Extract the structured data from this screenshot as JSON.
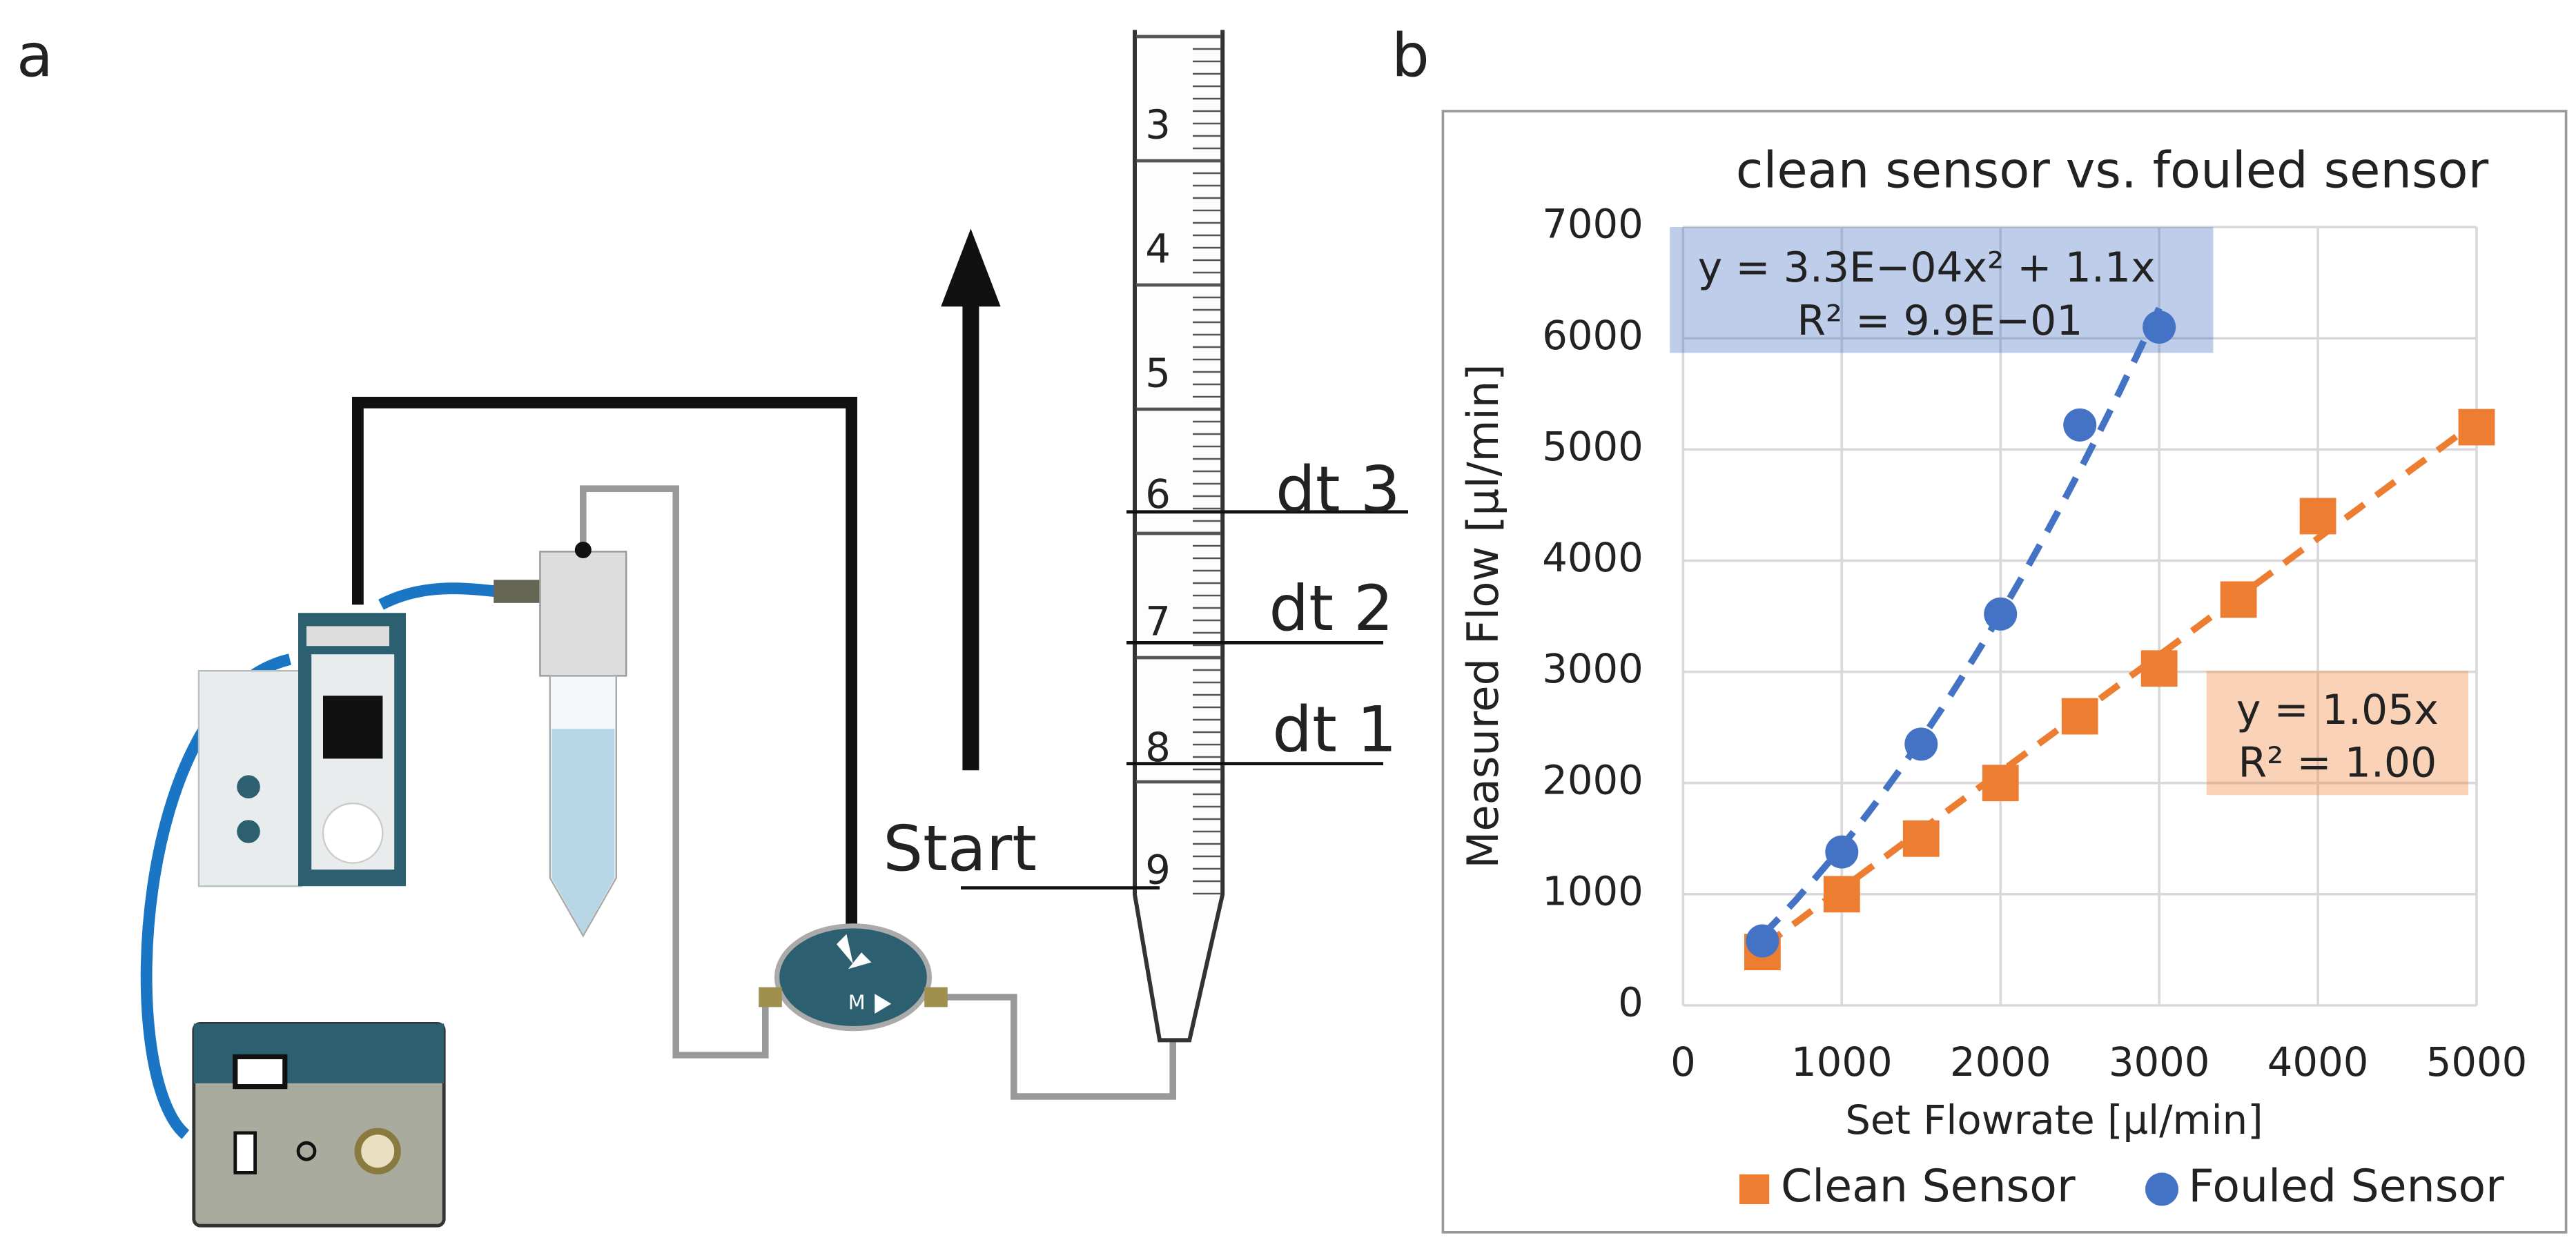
{
  "panel_labels": [
    "a",
    "b"
  ],
  "diagram": {
    "pipette_numbers": [
      "3",
      "4",
      "5",
      "6",
      "7",
      "8",
      "9"
    ],
    "markers": [
      "dt 3",
      "dt 2",
      "dt 1",
      "Start"
    ],
    "sensor_label": "M"
  },
  "chart_data": {
    "type": "scatter",
    "title": "clean sensor vs. fouled sensor",
    "xlabel": "Set Flowrate [µl/min]",
    "ylabel": "Measured Flow [µl/min]",
    "xlim": [
      0,
      5000
    ],
    "xticks": [
      0,
      1000,
      2000,
      3000,
      4000,
      5000
    ],
    "ylim": [
      0,
      7000
    ],
    "yticks": [
      0,
      1000,
      2000,
      3000,
      4000,
      5000,
      6000,
      7000
    ],
    "grid": true,
    "legend": "bottom",
    "series": [
      {
        "name": "Clean Sensor",
        "color": "#ed7d31",
        "marker": "square",
        "x": [
          500,
          1000,
          1500,
          2000,
          2500,
          3000,
          3500,
          4000,
          5000
        ],
        "values": [
          480,
          1000,
          1500,
          2000,
          2600,
          3030,
          3650,
          4400,
          5200
        ],
        "trendline": {
          "equation": "y = 1.05x",
          "r2": "R² = 1.00",
          "coefficients": [
            1.05
          ]
        }
      },
      {
        "name": "Fouled Sensor",
        "color": "#4472c4",
        "marker": "circle",
        "x": [
          500,
          1000,
          1500,
          2000,
          2500,
          3000
        ],
        "values": [
          580,
          1380,
          2350,
          3520,
          5220,
          6100
        ],
        "trendline": {
          "equation": "y = 3.3E−04x² + 1.1x",
          "r2": "R² = 9.9E−01",
          "coefficients": [
            0.00033,
            1.1
          ]
        }
      }
    ]
  }
}
